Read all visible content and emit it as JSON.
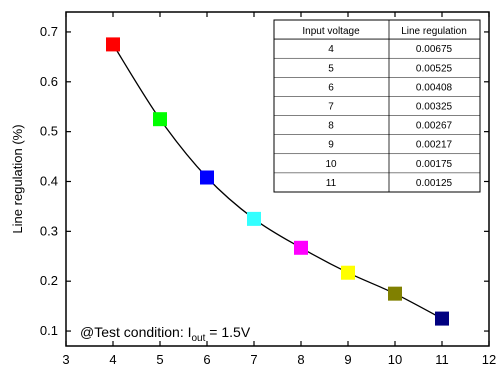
{
  "chart_data": {
    "type": "line",
    "xlabel": "",
    "ylabel": "Line regulation (%)",
    "xlim": [
      3,
      12
    ],
    "ylim": [
      0.07,
      0.74
    ],
    "x_ticks": [
      "3",
      "4",
      "5",
      "6",
      "7",
      "8",
      "9",
      "10",
      "11",
      "12"
    ],
    "y_ticks": [
      "0.1",
      "0.2",
      "0.3",
      "0.4",
      "0.5",
      "0.6",
      "0.7"
    ],
    "grid": false,
    "x": [
      4,
      5,
      6,
      7,
      8,
      9,
      10,
      11
    ],
    "series": [
      {
        "values": [
          0.675,
          0.525,
          0.408,
          0.325,
          0.267,
          0.217,
          0.175,
          0.125
        ]
      }
    ],
    "marker_colors": [
      "#ff0000",
      "#00ff00",
      "#0000ff",
      "#33ffff",
      "#ff00ff",
      "#ffff00",
      "#808000",
      "#000080"
    ],
    "line_color": "#000000",
    "annotation": {
      "prefix": "@Test condition: I",
      "subscript": "out",
      "suffix": " = 1.5V"
    },
    "table": {
      "headers": [
        "Input voltage",
        "Line regulation"
      ],
      "rows": [
        [
          "4",
          "0.00675"
        ],
        [
          "5",
          "0.00525"
        ],
        [
          "6",
          "0.00408"
        ],
        [
          "7",
          "0.00325"
        ],
        [
          "8",
          "0.00267"
        ],
        [
          "9",
          "0.00217"
        ],
        [
          "10",
          "0.00175"
        ],
        [
          "11",
          "0.00125"
        ]
      ]
    }
  }
}
